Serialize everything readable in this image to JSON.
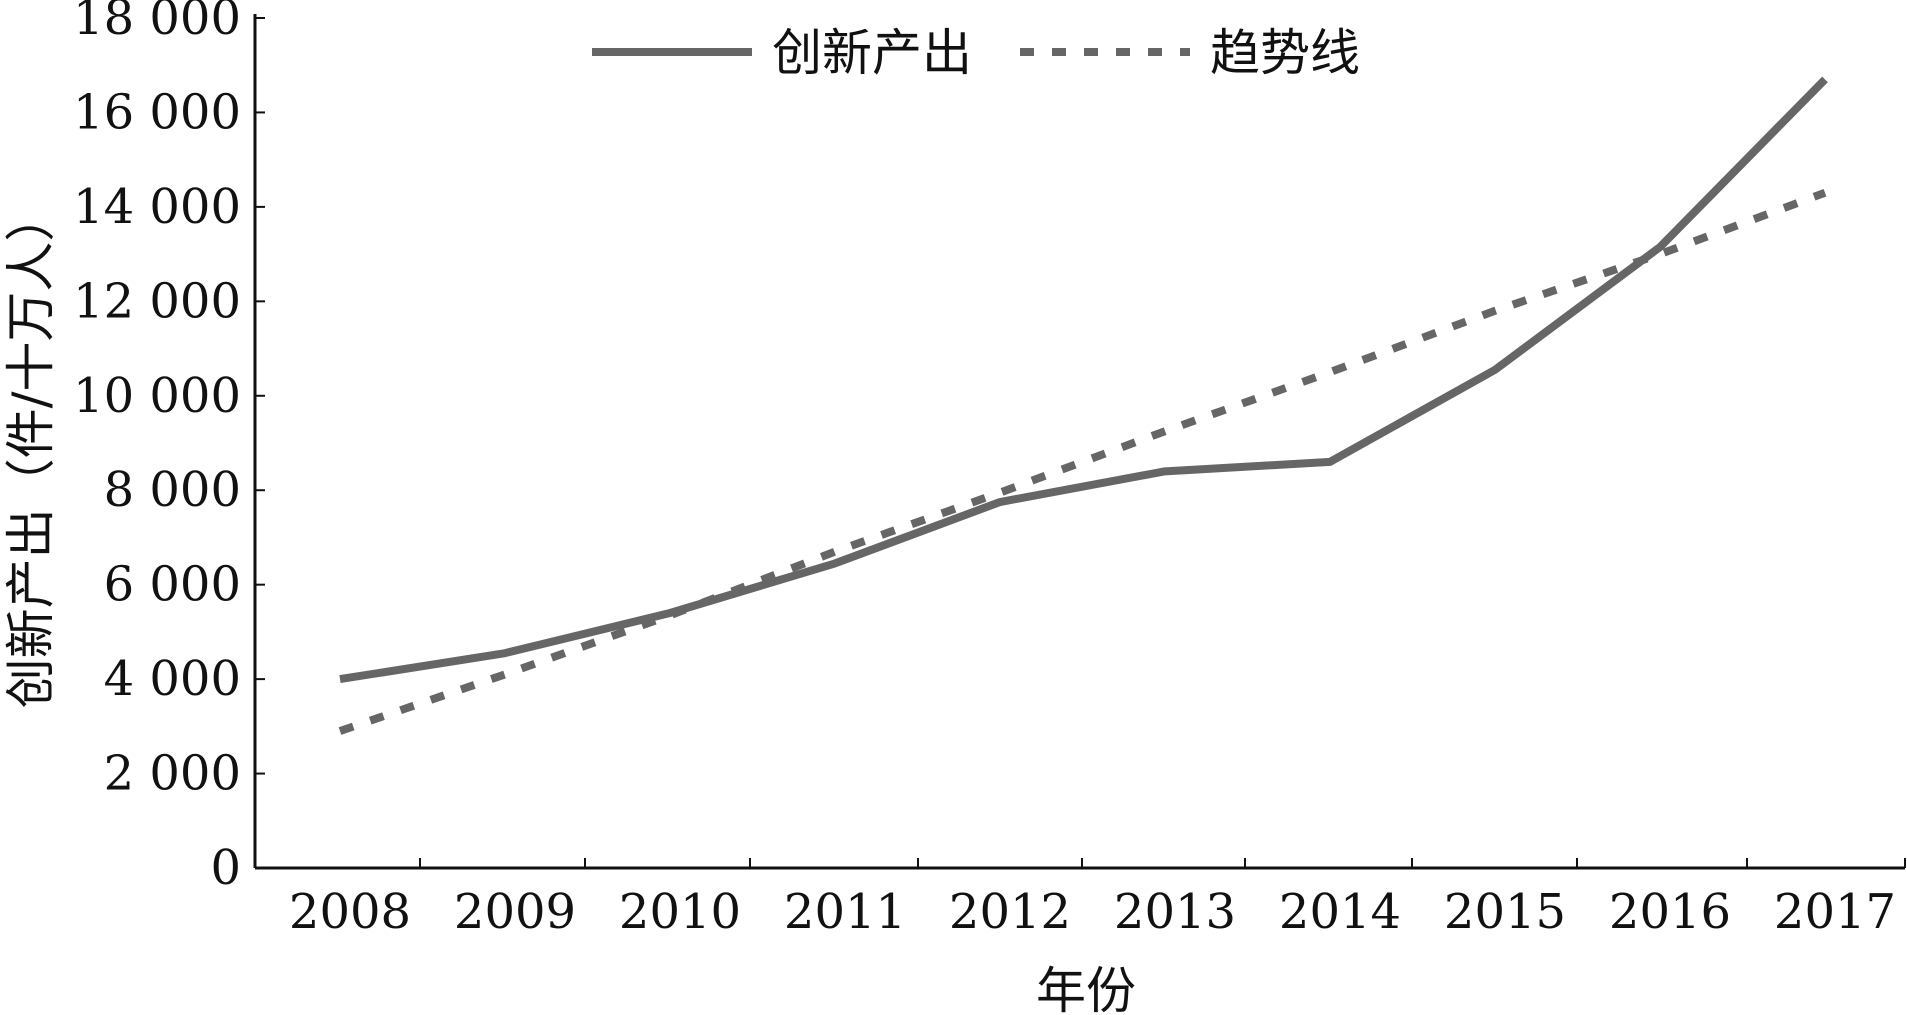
{
  "chart_data": {
    "type": "line",
    "x": [
      "2008",
      "2009",
      "2010",
      "2011",
      "2012",
      "2013",
      "2014",
      "2015",
      "2016",
      "2017"
    ],
    "series": [
      {
        "name": "创新产出",
        "values": [
          4000,
          4550,
          5400,
          6450,
          7750,
          8400,
          8600,
          10550,
          13150,
          16700
        ],
        "style": "solid",
        "color": "#666666"
      },
      {
        "name": "趋势线",
        "values": [
          2900,
          4100,
          5350,
          6700,
          7950,
          9250,
          10500,
          11800,
          13000,
          14300
        ],
        "style": "dotted",
        "color": "#666666"
      }
    ],
    "xlabel": "年份",
    "ylabel": "创新产出（件/十万人）",
    "ylim": [
      0,
      18000
    ],
    "yticks": [
      0,
      2000,
      4000,
      6000,
      8000,
      10000,
      12000,
      14000,
      16000,
      18000
    ],
    "ytick_labels": [
      "0",
      "2 000",
      "4 000",
      "6 000",
      "8 000",
      "10 000",
      "12 000",
      "14 000",
      "16 000",
      "18 000"
    ],
    "grid": false,
    "legend_position": "top-center"
  }
}
